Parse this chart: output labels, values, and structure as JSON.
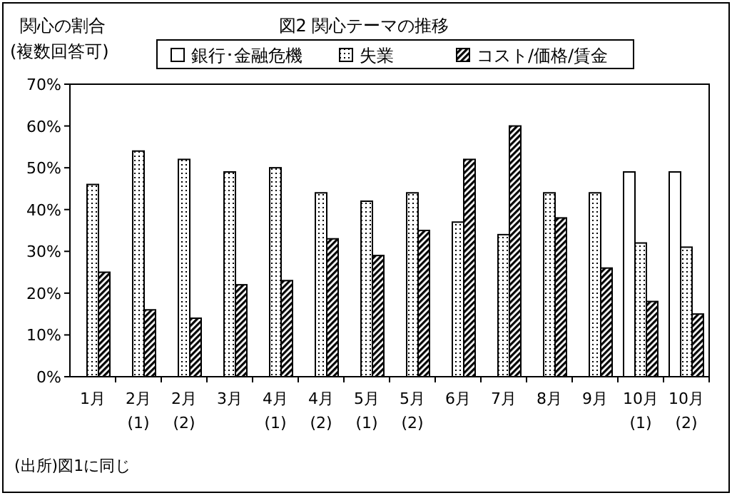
{
  "chart_data": {
    "type": "bar",
    "title": "図2  関心テーマの推移",
    "ylabel": "関心の割合\n(複数回答可)",
    "categories": [
      "1月",
      "2月\n(1)",
      "2月\n(2)",
      "3月",
      "4月\n(1)",
      "4月\n(2)",
      "5月\n(1)",
      "5月\n(2)",
      "6月",
      "7月",
      "8月",
      "9月",
      "10月\n(1)",
      "10月\n(2)"
    ],
    "series": [
      {
        "name": "銀行･金融危機",
        "color": "#ffffff",
        "values": [
          null,
          null,
          null,
          null,
          null,
          null,
          null,
          null,
          null,
          null,
          null,
          null,
          49,
          49
        ]
      },
      {
        "name": "失業",
        "color": "#000000",
        "values": [
          46,
          54,
          52,
          49,
          50,
          44,
          42,
          44,
          37,
          34,
          44,
          44,
          32,
          31
        ]
      },
      {
        "name": "コスト/価格/賃金",
        "color": "#000000",
        "values": [
          25,
          16,
          14,
          22,
          23,
          33,
          29,
          35,
          52,
          60,
          38,
          26,
          18,
          15
        ]
      }
    ],
    "ylim": [
      0,
      70
    ],
    "yticks": [
      {
        "value": 0,
        "label": "0%"
      },
      {
        "value": 10,
        "label": "10%"
      },
      {
        "value": 20,
        "label": "20%"
      },
      {
        "value": 30,
        "label": "30%"
      },
      {
        "value": 40,
        "label": "40%"
      },
      {
        "value": 50,
        "label": "50%"
      },
      {
        "value": 60,
        "label": "60%"
      },
      {
        "value": 70,
        "label": "70%"
      }
    ],
    "legend": "top",
    "grid": false,
    "annotations": [
      "(出所)図1に同じ"
    ]
  }
}
